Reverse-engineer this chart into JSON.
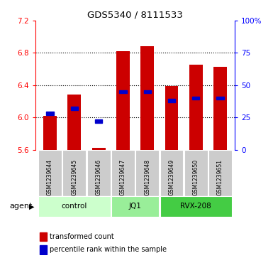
{
  "title": "GDS5340 / 8111533",
  "samples": [
    "GSM1239644",
    "GSM1239645",
    "GSM1239646",
    "GSM1239647",
    "GSM1239648",
    "GSM1239649",
    "GSM1239650",
    "GSM1239651"
  ],
  "transformed_counts": [
    6.02,
    6.28,
    5.62,
    6.82,
    6.88,
    6.39,
    6.65,
    6.63
  ],
  "percentile_ranks": [
    28,
    32,
    22,
    45,
    45,
    38,
    40,
    40
  ],
  "bar_bottom": 5.6,
  "ylim_left": [
    5.6,
    7.2
  ],
  "ylim_right": [
    0,
    100
  ],
  "yticks_left": [
    5.6,
    6.0,
    6.4,
    6.8,
    7.2
  ],
  "yticks_right": [
    0,
    25,
    50,
    75,
    100
  ],
  "ytick_labels_right": [
    "0",
    "25",
    "50",
    "75",
    "100%"
  ],
  "groups": [
    {
      "label": "control",
      "indices": [
        0,
        1,
        2
      ],
      "color": "#ccffcc"
    },
    {
      "label": "JQ1",
      "indices": [
        3,
        4
      ],
      "color": "#99ee99"
    },
    {
      "label": "RVX-208",
      "indices": [
        5,
        6,
        7
      ],
      "color": "#44cc44"
    }
  ],
  "bar_color": "#cc0000",
  "percentile_color": "#0000cc",
  "bar_width": 0.55,
  "background_color": "#ffffff",
  "sample_bg_color": "#cccccc",
  "agent_label": "agent",
  "legend_items": [
    "transformed count",
    "percentile rank within the sample"
  ],
  "grid_yticks": [
    6.0,
    6.4,
    6.8
  ]
}
